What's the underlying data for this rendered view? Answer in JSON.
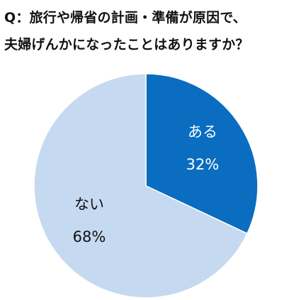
{
  "title": {
    "line1": "Q：旅行や帰省の計画・準備が原因で、",
    "line2": "夫婦げんかになったことはありますか？"
  },
  "chart_data": {
    "type": "pie",
    "title": "Q：旅行や帰省の計画・準備が原因で、夫婦げんかになったことはありますか？",
    "slices": [
      {
        "label": "ある",
        "value": 32,
        "display": "32%",
        "color": "#0A6DBF",
        "label_color": "#FFFFFF"
      },
      {
        "label": "ない",
        "value": 68,
        "display": "68%",
        "color": "#C5D9F0",
        "label_color": "#111111"
      }
    ]
  }
}
